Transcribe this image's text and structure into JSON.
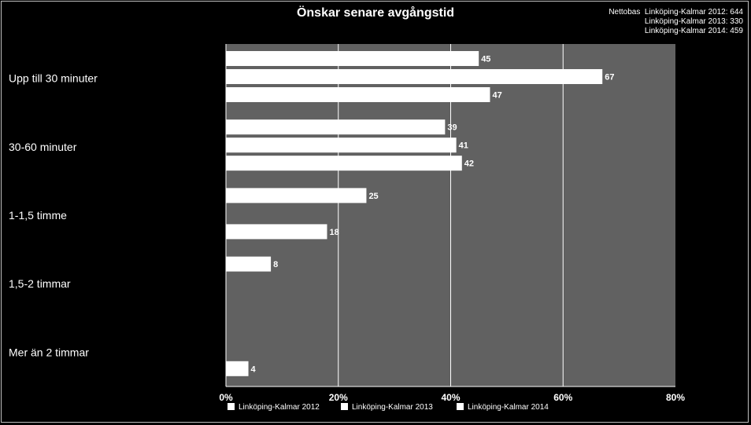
{
  "chart_data": {
    "type": "bar",
    "orientation": "horizontal",
    "title": "Önskar senare avgångstid",
    "categories": [
      "Upp till 30 minuter",
      "30-60 minuter",
      "1-1,5 timme",
      "1,5-2 timmar",
      "Mer än 2 timmar"
    ],
    "series": [
      {
        "name": "Linköping-Kalmar 2012",
        "values": [
          45,
          39,
          25,
          8,
          null
        ]
      },
      {
        "name": "Linköping-Kalmar 2013",
        "values": [
          67,
          41,
          null,
          null,
          null
        ]
      },
      {
        "name": "Linköping-Kalmar 2014",
        "values": [
          47,
          42,
          18,
          null,
          4
        ]
      }
    ],
    "xlim": [
      0,
      80
    ],
    "xticks": [
      "0%",
      "20%",
      "40%",
      "60%",
      "80%"
    ],
    "grid": true,
    "legend_position": "bottom",
    "colors": {
      "background": "#000000",
      "plot_area": "#616161",
      "bars": "#ffffff",
      "gridlines": "#ffffff",
      "text": "#ffffff"
    }
  },
  "base_note": {
    "label": "Nettobas",
    "rows": [
      "Linköping-Kalmar 2012: 644",
      "Linköping-Kalmar 2013: 330",
      "Linköping-Kalmar 2014: 459"
    ]
  }
}
